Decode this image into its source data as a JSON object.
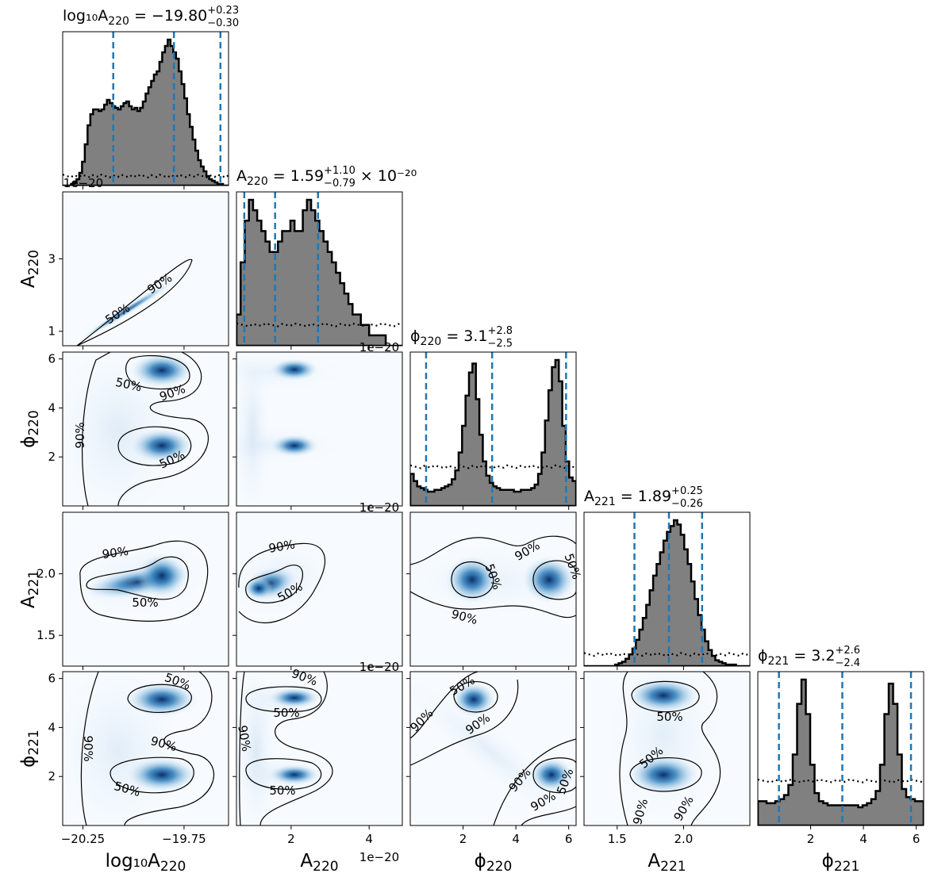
{
  "chart_data": {
    "type": "corner",
    "parameters": [
      {
        "symbol": "log₁₀A",
        "sub": "220",
        "range": [
          -20.35,
          -19.53
        ],
        "ticks": [
          -20.25,
          -19.75
        ],
        "tick_labels": [
          "−20.25",
          "−19.75"
        ],
        "title": {
          "value": "= −19.80",
          "plus": "+0.23",
          "minus": "−0.30"
        },
        "quantiles": [
          -20.1,
          -19.8,
          -19.57
        ]
      },
      {
        "symbol": "A",
        "sub": "220",
        "range": [
          6e-21,
          4.85e-20
        ],
        "ticks": [
          2e-20,
          4e-20
        ],
        "tick_labels": [
          "2",
          "4"
        ],
        "y_ticks": [
          1e-20,
          3e-20
        ],
        "y_tick_labels": [
          "1",
          "3"
        ],
        "offset": "1e−20",
        "title": {
          "value": "= 1.59",
          "plus": "+1.10",
          "minus": "−0.79",
          "suffix": "× 10⁻²⁰"
        },
        "quantiles": [
          8e-21,
          1.59e-20,
          2.69e-20
        ]
      },
      {
        "symbol": "ϕ",
        "sub": "220",
        "range": [
          0,
          6.28
        ],
        "ticks": [
          2,
          4,
          6
        ],
        "tick_labels": [
          "2",
          "4",
          "6"
        ],
        "title": {
          "value": "= 3.1",
          "plus": "+2.8",
          "minus": "−2.5"
        },
        "quantiles": [
          0.6,
          3.1,
          5.9
        ]
      },
      {
        "symbol": "A",
        "sub": "221",
        "range": [
          1.25,
          2.5
        ],
        "ticks": [
          1.5,
          2.0
        ],
        "tick_labels": [
          "1.5",
          "2.0"
        ],
        "title": {
          "value": "= 1.89",
          "plus": "+0.25",
          "minus": "−0.26"
        },
        "quantiles": [
          1.63,
          1.89,
          2.14
        ]
      },
      {
        "symbol": "ϕ",
        "sub": "221",
        "range": [
          0,
          6.28
        ],
        "ticks": [
          2,
          4,
          6
        ],
        "tick_labels": [
          "2",
          "4",
          "6"
        ],
        "title": {
          "value": "= 3.2",
          "plus": "+2.6",
          "minus": "−2.4"
        },
        "quantiles": [
          0.8,
          3.2,
          5.8
        ]
      }
    ],
    "contour_levels": [
      "50%",
      "90%"
    ],
    "colors": {
      "hist_fill": "#808080",
      "hist_edge": "#000000",
      "quantile": "#1f77b4",
      "density": "#08519c",
      "prior": "#000000"
    },
    "marginals": [
      {
        "posterior": [
          0,
          0,
          0,
          1,
          2,
          4,
          8,
          15,
          26,
          38,
          45,
          48,
          48,
          47,
          48,
          51,
          54,
          52,
          50,
          49,
          48,
          50,
          52,
          53,
          50,
          48,
          49,
          47,
          49,
          53,
          58,
          62,
          66,
          70,
          72,
          78,
          84,
          88,
          92,
          88,
          84,
          80,
          72,
          64,
          55,
          45,
          37,
          29,
          22,
          16,
          12,
          9,
          6,
          4,
          3,
          2,
          1,
          1,
          0,
          0
        ],
        "prior_level": 6
      },
      {
        "posterior": [
          3,
          8,
          12,
          14,
          13,
          12,
          11,
          10,
          9,
          9,
          10,
          11,
          11,
          12,
          11,
          11,
          13,
          14,
          13,
          12,
          11,
          10,
          9,
          8,
          7,
          6,
          5,
          4,
          3,
          3,
          2,
          2,
          1,
          1,
          1,
          1,
          0,
          0,
          0,
          0
        ],
        "prior_level": 2
      },
      {
        "posterior": [
          18,
          14,
          11,
          10,
          9,
          8,
          8,
          9,
          9,
          10,
          11,
          12,
          15,
          20,
          30,
          45,
          62,
          75,
          80,
          60,
          40,
          25,
          17,
          13,
          11,
          10,
          9,
          9,
          9,
          9,
          8,
          8,
          9,
          9,
          9,
          10,
          12,
          18,
          30,
          48,
          65,
          78,
          82,
          70,
          45,
          25,
          16,
          14
        ],
        "prior_level": 22
      },
      {
        "posterior": [
          0,
          0,
          0,
          0,
          0,
          0,
          0,
          0,
          0,
          1,
          2,
          3,
          5,
          8,
          12,
          18,
          25,
          33,
          42,
          52,
          62,
          70,
          78,
          86,
          92,
          96,
          100,
          97,
          90,
          80,
          70,
          58,
          46,
          35,
          25,
          17,
          11,
          7,
          4,
          3,
          2,
          1,
          1,
          1,
          0,
          0,
          0,
          0
        ],
        "prior_level": 8
      },
      {
        "posterior": [
          12,
          12,
          11,
          11,
          12,
          13,
          15,
          20,
          35,
          60,
          72,
          55,
          30,
          16,
          12,
          11,
          10,
          10,
          10,
          10,
          10,
          10,
          10,
          9,
          10,
          11,
          13,
          17,
          30,
          55,
          70,
          60,
          35,
          18,
          14,
          13,
          12,
          12
        ],
        "prior_level": 22
      }
    ],
    "modes": {
      "phi220": [
        2.4,
        5.5
      ],
      "phi221": [
        2.05,
        5.15
      ],
      "A221_main": 1.89
    }
  }
}
